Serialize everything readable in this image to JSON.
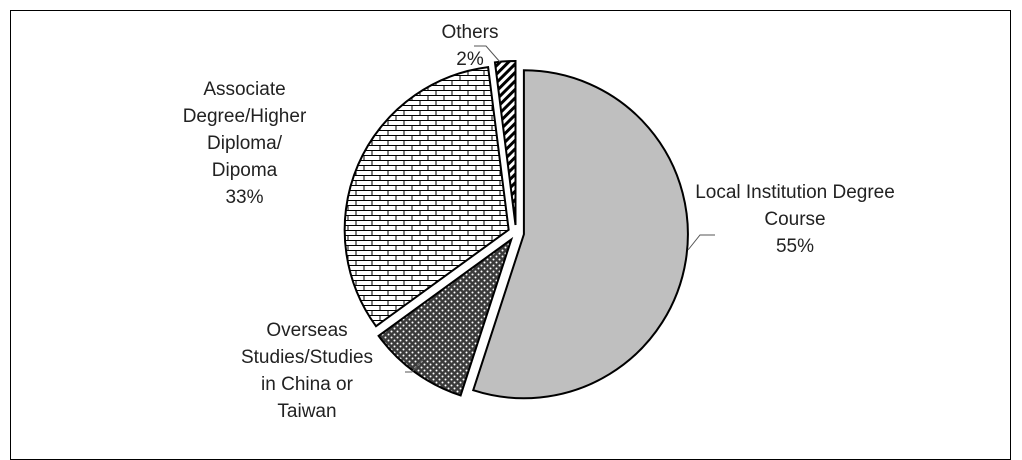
{
  "chart_data": {
    "type": "pie",
    "categories": [
      "Local Institution Degree Course",
      "Overseas Studies/Studies in China or Taiwan",
      "Associate Degree/Higher Diploma/ Dipoma",
      "Others"
    ],
    "values": [
      55,
      10,
      33,
      2
    ],
    "value_labels": [
      "55%",
      null,
      "33%",
      "2%"
    ]
  }
}
